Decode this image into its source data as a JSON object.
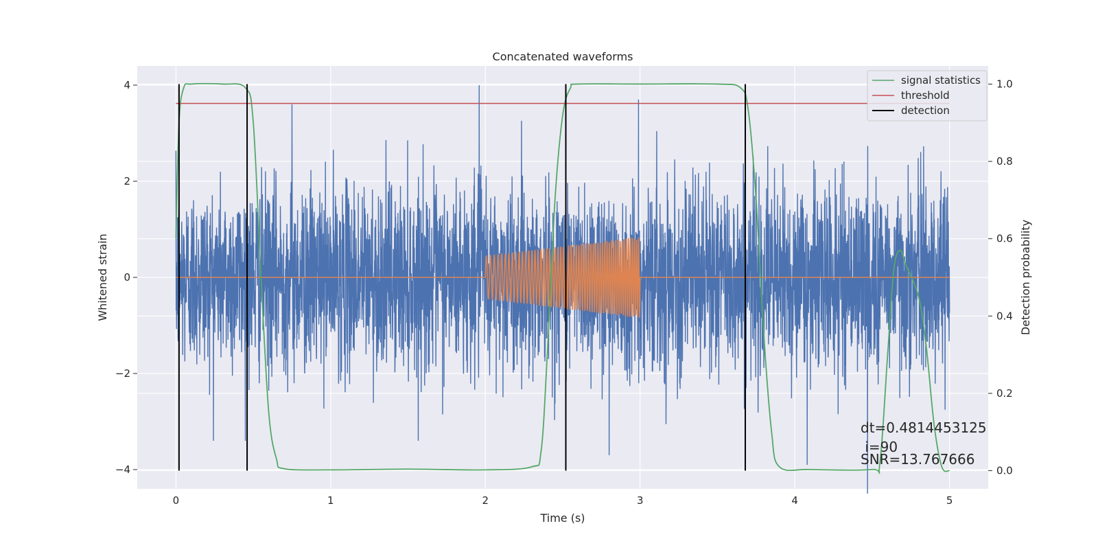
{
  "chart_data": {
    "type": "line",
    "title": "Concatenated waveforms",
    "xlabel": "Time (s)",
    "ylabel_left": "Whitened strain",
    "ylabel_right": "Detection probability",
    "xlim": [
      -0.25,
      5.25
    ],
    "ylim_left": [
      -4.4,
      4.4
    ],
    "ylim_right": [
      -0.047,
      1.047
    ],
    "x_ticks": [
      "0",
      "1",
      "2",
      "3",
      "4",
      "5"
    ],
    "y_ticks_left": [
      "4",
      "2",
      "0",
      "−2",
      "−4"
    ],
    "y_ticks_right": [
      "1.0",
      "0.8",
      "0.6",
      "0.4",
      "0.2",
      "0.0"
    ],
    "grid": true,
    "legend_position": "top-right",
    "colors": {
      "strain": "#4c72b0",
      "template": "#dd8452",
      "signal_statistics": "#55a868",
      "threshold": "#c44e52",
      "detection": "#000000",
      "background": "#eaeaf2"
    },
    "series": [
      {
        "name": "",
        "axis": "left",
        "note_style": "noise",
        "x_range": [
          0,
          5
        ],
        "amplitude_typical": 1.0,
        "extremes": [
          [
            1.96,
            4.0
          ],
          [
            2.99,
            3.7
          ],
          [
            0.75,
            3.6
          ],
          [
            4.47,
            -4.5
          ],
          [
            2.8,
            -3.7
          ],
          [
            4.08,
            -3.9
          ]
        ]
      },
      {
        "name": "",
        "axis": "left",
        "x_range": [
          0,
          5
        ],
        "chirp_start": 2.0,
        "chirp_end": 3.0,
        "amplitude_start": 0.45,
        "amplitude_end": 0.85
      },
      {
        "name": "signal statistics",
        "axis": "right",
        "x": [
          0.0,
          0.02,
          0.05,
          0.1,
          0.3,
          0.45,
          0.5,
          0.55,
          0.6,
          0.65,
          0.7,
          1.0,
          1.5,
          2.0,
          2.3,
          2.36,
          2.4,
          2.45,
          2.5,
          2.55,
          2.6,
          3.0,
          3.5,
          3.65,
          3.7,
          3.75,
          3.8,
          3.85,
          3.9,
          4.1,
          4.5,
          4.55,
          4.6,
          4.64,
          4.68,
          4.72,
          4.8,
          4.85,
          4.9,
          4.95,
          5.0
        ],
        "y": [
          0.6,
          0.9,
          0.99,
          1.0,
          1.0,
          0.99,
          0.9,
          0.5,
          0.15,
          0.03,
          0.005,
          0.002,
          0.004,
          0.002,
          0.01,
          0.05,
          0.3,
          0.7,
          0.92,
          0.99,
          1.0,
          1.0,
          1.0,
          0.99,
          0.93,
          0.7,
          0.35,
          0.1,
          0.01,
          0.003,
          0.003,
          0.02,
          0.3,
          0.52,
          0.57,
          0.53,
          0.45,
          0.32,
          0.12,
          0.01,
          0.0
        ]
      },
      {
        "name": "threshold",
        "axis": "right",
        "x": [
          0,
          5
        ],
        "y": [
          0.95,
          0.95
        ]
      },
      {
        "name": "detection",
        "axis": "right",
        "x": [
          0.02,
          0.46,
          2.52,
          3.68
        ],
        "y_range": [
          0,
          1
        ]
      }
    ],
    "annotation": {
      "lines": [
        "dt=0.4814453125",
        " i=90",
        "SNR=13.767666"
      ]
    }
  }
}
